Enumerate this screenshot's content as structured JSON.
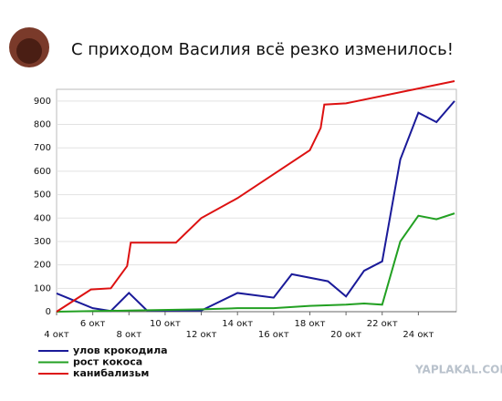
{
  "chart_data": {
    "type": "line",
    "title": "С приходом Василия всё резко изменилось!",
    "watermark": "YAPLAKAL.COM",
    "xlim": [
      4,
      26.1
    ],
    "ylim": [
      0,
      950
    ],
    "xticks": [
      {
        "value": 4,
        "label": "4 окт"
      },
      {
        "value": 6,
        "label": "6 окт"
      },
      {
        "value": 8,
        "label": "8 окт"
      },
      {
        "value": 10,
        "label": "10 окт"
      },
      {
        "value": 12,
        "label": "12 окт"
      },
      {
        "value": 14,
        "label": "14 окт"
      },
      {
        "value": 16,
        "label": "16 окт"
      },
      {
        "value": 18,
        "label": "18 окт"
      },
      {
        "value": 20,
        "label": "20 окт"
      },
      {
        "value": 22,
        "label": "22 окт"
      },
      {
        "value": 24,
        "label": "24 окт"
      }
    ],
    "yticks": [
      0,
      100,
      200,
      300,
      400,
      500,
      600,
      700,
      800,
      900
    ],
    "grid": true,
    "series": [
      {
        "name": "улов крокодила",
        "color": "#1a1a99",
        "x": [
          4,
          6,
          7,
          8,
          9,
          12,
          14,
          16,
          17,
          19,
          20,
          21,
          22,
          23,
          24,
          25,
          26
        ],
        "values": [
          78,
          15,
          3,
          80,
          5,
          5,
          80,
          60,
          160,
          130,
          65,
          175,
          215,
          650,
          850,
          810,
          900
        ]
      },
      {
        "name": "рост кокоса",
        "color": "#22a022",
        "x": [
          4,
          8,
          12,
          14,
          16,
          18,
          20,
          21,
          22,
          23,
          24,
          25,
          26
        ],
        "values": [
          0,
          5,
          10,
          15,
          15,
          25,
          30,
          35,
          30,
          300,
          410,
          395,
          420
        ]
      },
      {
        "name": "канибализьм",
        "color": "#dd1111",
        "x": [
          4,
          5.9,
          7,
          7.9,
          8.1,
          10.6,
          12,
          14,
          18,
          18.6,
          18.8,
          20,
          26
        ],
        "values": [
          0,
          95,
          100,
          195,
          295,
          295,
          400,
          485,
          690,
          785,
          885,
          890,
          985
        ]
      }
    ]
  }
}
